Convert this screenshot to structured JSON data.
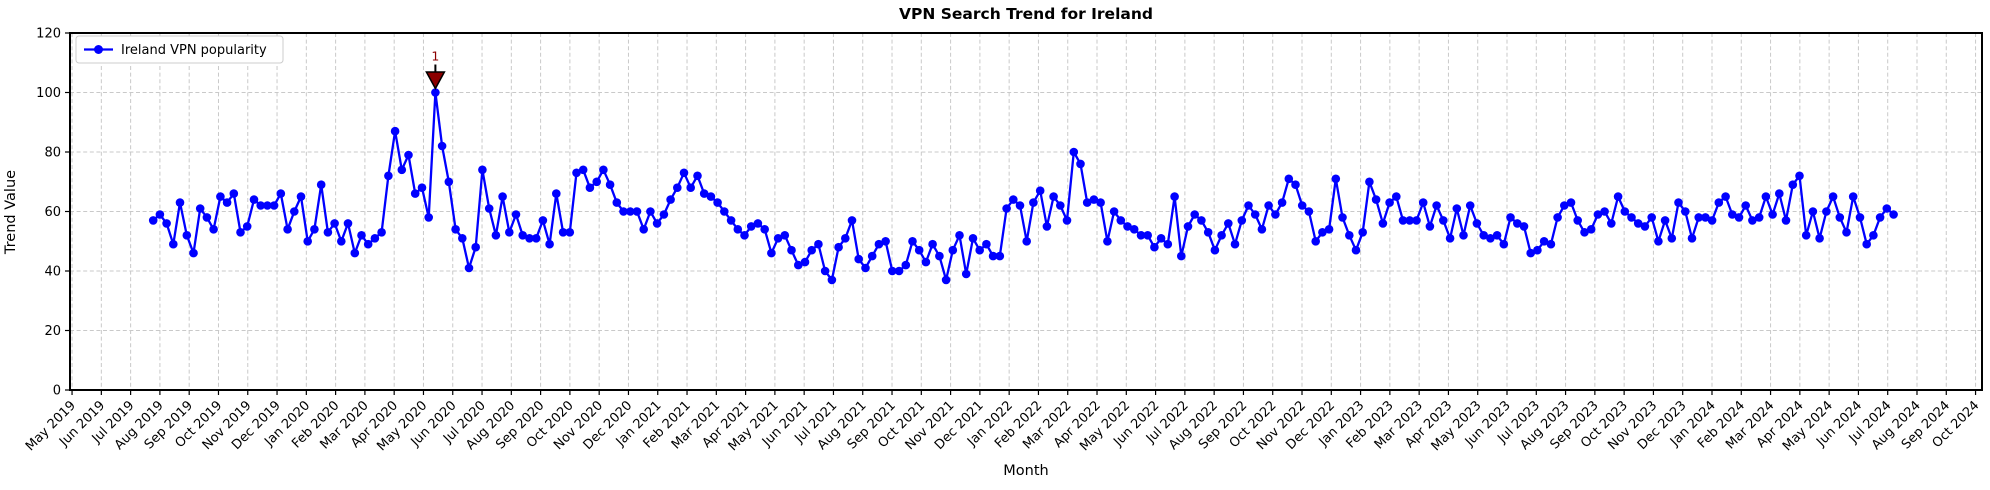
{
  "chart_data": {
    "type": "line",
    "title": "VPN Search Trend for Ireland",
    "xlabel": "Month",
    "ylabel": "Trend Value",
    "ylim": [
      0,
      120
    ],
    "y_ticks": [
      0,
      20,
      40,
      60,
      80,
      100,
      120
    ],
    "grid": true,
    "legend_position": "upper left",
    "x_tick_labels": [
      "May 2019",
      "Jun 2019",
      "Jul 2019",
      "Aug 2019",
      "Sep 2019",
      "Oct 2019",
      "Nov 2019",
      "Dec 2019",
      "Jan 2020",
      "Feb 2020",
      "Mar 2020",
      "Apr 2020",
      "May 2020",
      "Jun 2020",
      "Jul 2020",
      "Aug 2020",
      "Sep 2020",
      "Oct 2020",
      "Nov 2020",
      "Dec 2020",
      "Jan 2021",
      "Feb 2021",
      "Mar 2021",
      "Apr 2021",
      "May 2021",
      "Jun 2021",
      "Jul 2021",
      "Aug 2021",
      "Sep 2021",
      "Oct 2021",
      "Nov 2021",
      "Dec 2021",
      "Jan 2022",
      "Feb 2022",
      "Mar 2022",
      "Apr 2022",
      "May 2022",
      "Jun 2022",
      "Jul 2022",
      "Aug 2022",
      "Sep 2022",
      "Oct 2022",
      "Nov 2022",
      "Dec 2022",
      "Jan 2023",
      "Feb 2023",
      "Mar 2023",
      "Apr 2023",
      "May 2023",
      "Jun 2023",
      "Jul 2023",
      "Aug 2023",
      "Sep 2023",
      "Oct 2023",
      "Nov 2023",
      "Dec 2023",
      "Jan 2024",
      "Feb 2024",
      "Mar 2024",
      "Apr 2024",
      "May 2024",
      "Jun 2024",
      "Jul 2024",
      "Aug 2024",
      "Sep 2024",
      "Oct 2024"
    ],
    "xlim_months": [
      -0.07,
      65.22
    ],
    "series": [
      {
        "name": "Ireland VPN popularity",
        "color": "#0000ff",
        "cadence": "weekly",
        "start_month_index": 2.77,
        "end_month_index": 62.2,
        "values": [
          57,
          59,
          56,
          49,
          63,
          52,
          46,
          61,
          58,
          54,
          65,
          63,
          66,
          53,
          55,
          64,
          62,
          62,
          62,
          66,
          54,
          60,
          65,
          50,
          54,
          69,
          53,
          56,
          50,
          56,
          46,
          52,
          49,
          51,
          53,
          72,
          87,
          74,
          79,
          66,
          68,
          58,
          100,
          82,
          70,
          54,
          51,
          41,
          48,
          74,
          61,
          52,
          65,
          53,
          59,
          52,
          51,
          51,
          57,
          49,
          66,
          53,
          53,
          73,
          74,
          68,
          70,
          74,
          69,
          63,
          60,
          60,
          60,
          54,
          60,
          56,
          59,
          64,
          68,
          73,
          68,
          72,
          66,
          65,
          63,
          60,
          57,
          54,
          52,
          55,
          56,
          54,
          46,
          51,
          52,
          47,
          42,
          43,
          47,
          49,
          40,
          37,
          48,
          51,
          57,
          44,
          41,
          45,
          49,
          50,
          40,
          40,
          42,
          50,
          47,
          43,
          49,
          45,
          37,
          47,
          52,
          39,
          51,
          47,
          49,
          45,
          45,
          61,
          64,
          62,
          50,
          63,
          67,
          55,
          65,
          62,
          57,
          80,
          76,
          63,
          64,
          63,
          50,
          60,
          57,
          55,
          54,
          52,
          52,
          48,
          51,
          49,
          65,
          45,
          55,
          59,
          57,
          53,
          47,
          52,
          56,
          49,
          57,
          62,
          59,
          54,
          62,
          59,
          63,
          71,
          69,
          62,
          60,
          50,
          53,
          54,
          71,
          58,
          52,
          47,
          53,
          70,
          64,
          56,
          63,
          65,
          57,
          57,
          57,
          63,
          55,
          62,
          57,
          51,
          61,
          52,
          62,
          56,
          52,
          51,
          52,
          49,
          58,
          56,
          55,
          46,
          47,
          50,
          49,
          58,
          62,
          63,
          57,
          53,
          54,
          59,
          60,
          56,
          65,
          60,
          58,
          56,
          55,
          58,
          50,
          57,
          51,
          63,
          60,
          51,
          58,
          58,
          57,
          63,
          65,
          59,
          58,
          62,
          57,
          58,
          65,
          59,
          66,
          57,
          69,
          72,
          52,
          60,
          51,
          60,
          65,
          58,
          53,
          65,
          58,
          49,
          52,
          58,
          61,
          59
        ]
      }
    ],
    "annotation": {
      "text": "1",
      "point_index": 42,
      "value": 100,
      "marker": "triangle-down",
      "color": "#8b0000",
      "edge_color": "#000000"
    }
  },
  "colors": {
    "background": "#ffffff",
    "grid": "#c9c9c9",
    "spine": "#000000"
  }
}
